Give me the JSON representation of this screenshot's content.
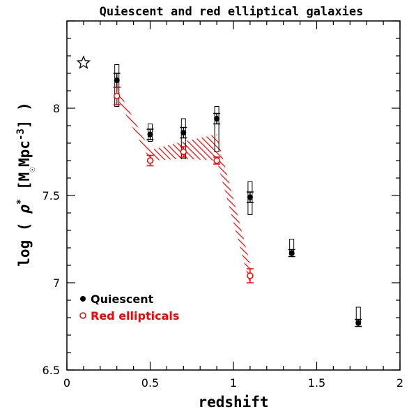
{
  "chart_data": {
    "type": "scatter",
    "title": "Quiescent and red elliptical galaxies",
    "xlabel": "redshift",
    "ylabel_parts": [
      "log ( ",
      "ρ",
      "*",
      " [M",
      "☉",
      "Mpc",
      "-3",
      "] )"
    ],
    "xlim": [
      0,
      2
    ],
    "ylim": [
      6.5,
      8.5
    ],
    "x_ticks": [
      {
        "value": 0,
        "label": "0"
      },
      {
        "value": 0.5,
        "label": "0.5"
      },
      {
        "value": 1,
        "label": "1"
      },
      {
        "value": 1.5,
        "label": "1.5"
      },
      {
        "value": 2,
        "label": "2"
      }
    ],
    "y_ticks": [
      {
        "value": 6.5,
        "label": "6.5"
      },
      {
        "value": 7,
        "label": "7"
      },
      {
        "value": 7.5,
        "label": "7.5"
      },
      {
        "value": 8,
        "label": "8"
      }
    ],
    "grid": false,
    "legend_position": "lower-left",
    "local_reference": {
      "x": 0.1,
      "y": 8.26,
      "marker": "star"
    },
    "series": [
      {
        "name": "Quiescent",
        "color": "#000000",
        "marker": "filled-circle",
        "points": [
          {
            "x": 0.3,
            "y": 8.16,
            "err": 0.04,
            "box": [
              8.01,
              8.25
            ]
          },
          {
            "x": 0.5,
            "y": 7.85,
            "err": 0.03,
            "box": [
              7.81,
              7.91
            ]
          },
          {
            "x": 0.7,
            "y": 7.86,
            "err": 0.03,
            "box": [
              7.71,
              7.94
            ]
          },
          {
            "x": 0.9,
            "y": 7.94,
            "err": 0.03,
            "box": [
              7.75,
              8.01
            ]
          },
          {
            "x": 1.1,
            "y": 7.49,
            "err": 0.03,
            "box": [
              7.39,
              7.58
            ]
          },
          {
            "x": 1.35,
            "y": 7.17,
            "err": 0.02,
            "box": [
              7.16,
              7.25
            ]
          },
          {
            "x": 1.75,
            "y": 6.77,
            "err": 0.02,
            "box": [
              6.76,
              6.86
            ]
          }
        ]
      },
      {
        "name": "Red ellipticals",
        "color": "#ff0000",
        "marker": "open-circle",
        "points": [
          {
            "x": 0.3,
            "y": 8.07,
            "err": 0.05
          },
          {
            "x": 0.5,
            "y": 7.7,
            "err": 0.03
          },
          {
            "x": 0.7,
            "y": 7.75,
            "err": 0.03
          },
          {
            "x": 0.9,
            "y": 7.7,
            "err": 0.02
          },
          {
            "x": 1.1,
            "y": 7.04,
            "err": 0.04
          }
        ]
      }
    ],
    "model_band": {
      "color": "#ff0000",
      "fill": "diagonal-hatch",
      "upper": [
        [
          0.3,
          8.12
        ],
        [
          0.5,
          7.76
        ],
        [
          0.7,
          7.81
        ],
        [
          0.9,
          7.85
        ],
        [
          1.1,
          7.11
        ]
      ],
      "lower": [
        [
          0.3,
          8.06
        ],
        [
          0.5,
          7.7
        ],
        [
          0.7,
          7.71
        ],
        [
          0.9,
          7.7
        ],
        [
          1.1,
          6.99
        ]
      ]
    }
  }
}
